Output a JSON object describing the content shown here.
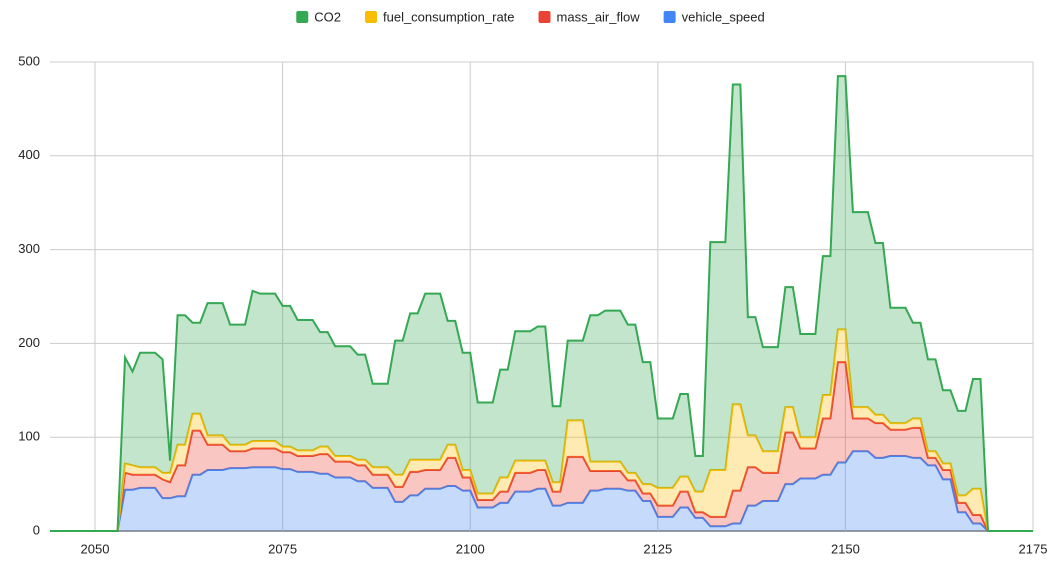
{
  "chart_data": {
    "type": "stacked_area",
    "x": [
      2044,
      2045,
      2046,
      2047,
      2048,
      2049,
      2050,
      2051,
      2052,
      2053,
      2054,
      2055,
      2056,
      2057,
      2058,
      2059,
      2060,
      2061,
      2062,
      2063,
      2064,
      2065,
      2066,
      2067,
      2068,
      2069,
      2070,
      2071,
      2072,
      2073,
      2074,
      2075,
      2076,
      2077,
      2078,
      2079,
      2080,
      2081,
      2082,
      2083,
      2084,
      2085,
      2086,
      2087,
      2088,
      2089,
      2090,
      2091,
      2092,
      2093,
      2094,
      2095,
      2096,
      2097,
      2098,
      2099,
      2100,
      2101,
      2102,
      2103,
      2104,
      2105,
      2106,
      2107,
      2108,
      2109,
      2110,
      2111,
      2112,
      2113,
      2114,
      2115,
      2116,
      2117,
      2118,
      2119,
      2120,
      2121,
      2122,
      2123,
      2124,
      2125,
      2126,
      2127,
      2128,
      2129,
      2130,
      2131,
      2132,
      2133,
      2134,
      2135,
      2136,
      2137,
      2138,
      2139,
      2140,
      2141,
      2142,
      2143,
      2144,
      2145,
      2146,
      2147,
      2148,
      2149,
      2150,
      2151,
      2152,
      2153,
      2154,
      2155,
      2156,
      2157,
      2158,
      2159,
      2160,
      2161,
      2162,
      2163,
      2164,
      2165,
      2166,
      2167,
      2168,
      2169,
      2170,
      2171,
      2172,
      2173,
      2174,
      2175
    ],
    "series": [
      {
        "name": "CO2",
        "color": "#34a853",
        "values": [
          0,
          0,
          0,
          0,
          0,
          0,
          0,
          0,
          0,
          0,
          113,
          100,
          122,
          122,
          122,
          121,
          13,
          138,
          138,
          97,
          97,
          141,
          141,
          141,
          128,
          128,
          128,
          160,
          157,
          157,
          157,
          150,
          150,
          139,
          139,
          139,
          122,
          122,
          117,
          117,
          117,
          112,
          112,
          89,
          89,
          89,
          143,
          143,
          156,
          156,
          177,
          177,
          177,
          132,
          132,
          125,
          125,
          97,
          97,
          97,
          115,
          115,
          138,
          138,
          138,
          143,
          143,
          81,
          81,
          85,
          85,
          85,
          156,
          156,
          161,
          161,
          161,
          158,
          158,
          130,
          130,
          74,
          74,
          74,
          88,
          88,
          38,
          38,
          243,
          243,
          243,
          341,
          341,
          126,
          126,
          111,
          111,
          111,
          128,
          128,
          110,
          110,
          110,
          148,
          148,
          270,
          270,
          208,
          208,
          208,
          183,
          183,
          123,
          123,
          123,
          102,
          102,
          98,
          98,
          78,
          78,
          90,
          90,
          117,
          117,
          0,
          0,
          0,
          0,
          0,
          0,
          0
        ]
      },
      {
        "name": "fuel_consumption_rate",
        "color": "#fbbc04",
        "values": [
          0,
          0,
          0,
          0,
          0,
          0,
          0,
          0,
          0,
          0,
          10,
          10,
          8,
          8,
          8,
          7,
          10,
          22,
          22,
          18,
          18,
          10,
          10,
          10,
          7,
          7,
          7,
          8,
          8,
          8,
          8,
          6,
          6,
          6,
          6,
          6,
          8,
          8,
          6,
          6,
          6,
          6,
          6,
          8,
          8,
          8,
          13,
          13,
          13,
          13,
          11,
          11,
          11,
          14,
          14,
          8,
          8,
          7,
          7,
          7,
          15,
          15,
          13,
          13,
          13,
          10,
          10,
          10,
          10,
          39,
          39,
          39,
          10,
          10,
          10,
          10,
          10,
          8,
          8,
          10,
          10,
          19,
          19,
          19,
          16,
          16,
          22,
          22,
          50,
          50,
          50,
          92,
          92,
          34,
          34,
          23,
          23,
          23,
          27,
          27,
          12,
          12,
          12,
          25,
          25,
          35,
          35,
          12,
          12,
          12,
          9,
          9,
          7,
          7,
          7,
          10,
          10,
          7,
          7,
          7,
          7,
          8,
          8,
          28,
          28,
          0,
          0,
          0,
          0,
          0,
          0,
          0
        ]
      },
      {
        "name": "mass_air_flow",
        "color": "#ea4335",
        "values": [
          0,
          0,
          0,
          0,
          0,
          0,
          0,
          0,
          0,
          0,
          18,
          16,
          14,
          14,
          14,
          20,
          17,
          33,
          33,
          47,
          47,
          27,
          27,
          27,
          18,
          18,
          18,
          20,
          20,
          20,
          20,
          18,
          18,
          17,
          17,
          17,
          21,
          21,
          17,
          17,
          17,
          17,
          17,
          14,
          14,
          14,
          16,
          16,
          25,
          25,
          20,
          20,
          20,
          30,
          30,
          14,
          14,
          8,
          8,
          8,
          12,
          12,
          20,
          20,
          20,
          20,
          20,
          15,
          15,
          49,
          49,
          49,
          21,
          21,
          19,
          19,
          19,
          11,
          11,
          8,
          8,
          12,
          12,
          12,
          17,
          17,
          6,
          6,
          10,
          10,
          10,
          35,
          35,
          41,
          41,
          30,
          30,
          30,
          55,
          55,
          32,
          32,
          32,
          60,
          60,
          107,
          107,
          35,
          35,
          35,
          37,
          37,
          28,
          28,
          28,
          32,
          32,
          8,
          8,
          10,
          10,
          10,
          10,
          9,
          9,
          0,
          0,
          0,
          0,
          0,
          0,
          0
        ]
      },
      {
        "name": "vehicle_speed",
        "color": "#4285f4",
        "values": [
          0,
          0,
          0,
          0,
          0,
          0,
          0,
          0,
          0,
          0,
          44,
          44,
          46,
          46,
          46,
          35,
          35,
          37,
          37,
          60,
          60,
          65,
          65,
          65,
          67,
          67,
          67,
          68,
          68,
          68,
          68,
          66,
          66,
          63,
          63,
          63,
          61,
          61,
          57,
          57,
          57,
          53,
          53,
          46,
          46,
          46,
          31,
          31,
          38,
          38,
          45,
          45,
          45,
          48,
          48,
          43,
          43,
          25,
          25,
          25,
          30,
          30,
          42,
          42,
          42,
          45,
          45,
          27,
          27,
          30,
          30,
          30,
          43,
          43,
          45,
          45,
          45,
          43,
          43,
          32,
          32,
          15,
          15,
          15,
          25,
          25,
          14,
          14,
          5,
          5,
          5,
          8,
          8,
          27,
          27,
          32,
          32,
          32,
          50,
          50,
          56,
          56,
          56,
          60,
          60,
          73,
          73,
          85,
          85,
          85,
          78,
          78,
          80,
          80,
          80,
          78,
          78,
          70,
          70,
          55,
          55,
          20,
          20,
          8,
          8,
          0,
          0,
          0,
          0,
          0,
          0,
          0
        ]
      }
    ],
    "xlim": [
      2044,
      2175
    ],
    "ylim": [
      0,
      500
    ],
    "xticks": [
      2050,
      2075,
      2100,
      2125,
      2150,
      2175
    ],
    "yticks": [
      0,
      100,
      200,
      300,
      400,
      500
    ],
    "grid": true,
    "stacked": true,
    "legend": "top"
  }
}
